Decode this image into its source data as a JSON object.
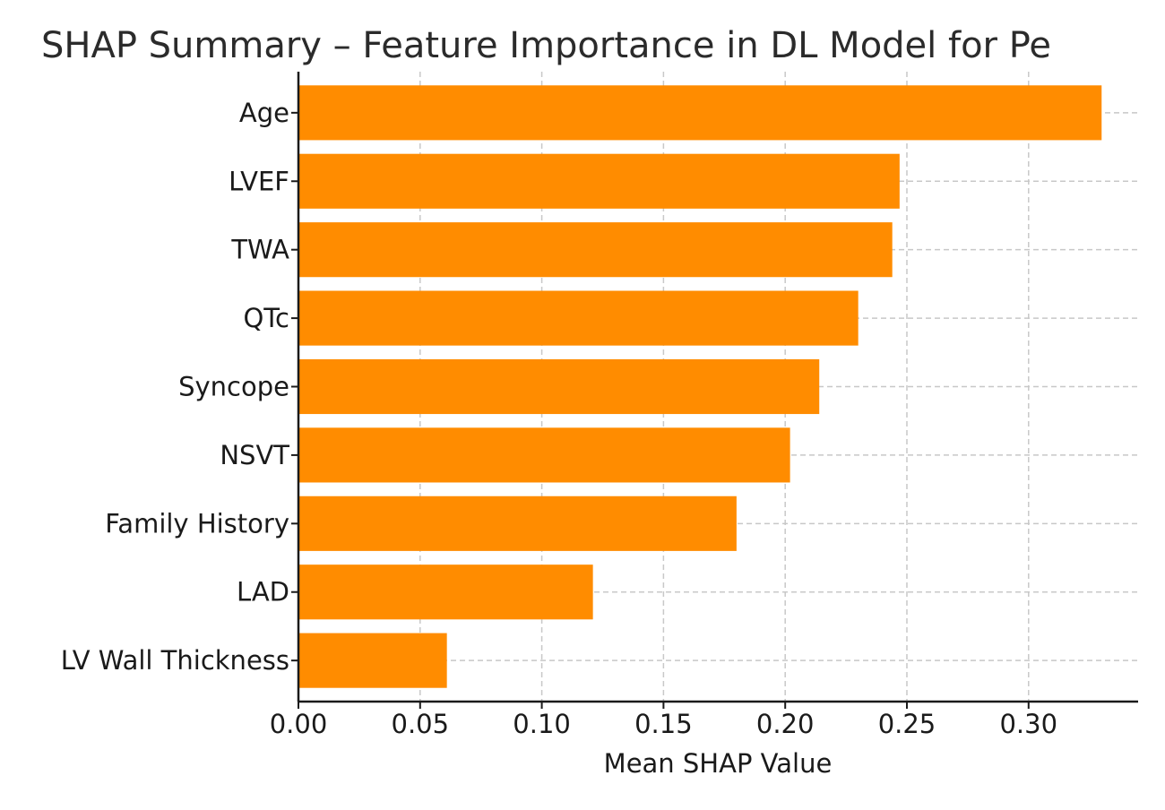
{
  "chart_data": {
    "type": "bar",
    "orientation": "horizontal",
    "title": "SHAP Summary – Feature Importance in DL Model for Pe",
    "xlabel": "Mean SHAP Value",
    "ylabel": "",
    "xlim": [
      0,
      0.345
    ],
    "xticks": [
      0.0,
      0.05,
      0.1,
      0.15,
      0.2,
      0.25,
      0.3
    ],
    "xtick_labels": [
      "0.00",
      "0.05",
      "0.10",
      "0.15",
      "0.20",
      "0.25",
      "0.30"
    ],
    "grid": true,
    "bar_color": "#ff8c00",
    "categories": [
      "Age",
      "LVEF",
      "TWA",
      "QTc",
      "Syncope",
      "NSVT",
      "Family History",
      "LAD",
      "LV Wall Thickness"
    ],
    "values": [
      0.33,
      0.247,
      0.244,
      0.23,
      0.214,
      0.202,
      0.18,
      0.121,
      0.061
    ]
  }
}
